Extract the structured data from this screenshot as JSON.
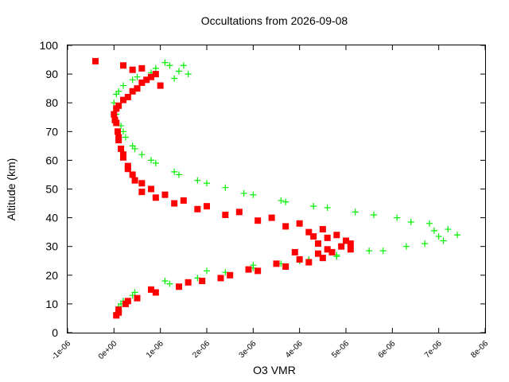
{
  "chart_data": {
    "type": "scatter",
    "title": "Occultations from 2026-09-08",
    "xlabel": "O3 VMR",
    "ylabel": "Altitude (km)",
    "xlim": [
      -1e-06,
      8e-06
    ],
    "ylim": [
      0,
      100
    ],
    "x_ticks": [
      "-1e-06",
      "0e+00",
      "1e-06",
      "2e-06",
      "3e-06",
      "4e-06",
      "5e-06",
      "6e-06",
      "7e-06",
      "8e-06"
    ],
    "x_tick_values": [
      -1e-06,
      0,
      1e-06,
      2e-06,
      3e-06,
      4e-06,
      5e-06,
      6e-06,
      7e-06,
      8e-06
    ],
    "y_ticks": [
      "0",
      "10",
      "20",
      "30",
      "40",
      "50",
      "60",
      "70",
      "80",
      "90",
      "100"
    ],
    "y_tick_values": [
      0,
      10,
      20,
      30,
      40,
      50,
      60,
      70,
      80,
      90,
      100
    ],
    "grid": false,
    "series": [
      {
        "color": "#00ee00",
        "marker": "plus",
        "points": [
          [
            5e-08,
            7
          ],
          [
            1e-07,
            9
          ],
          [
            2e-07,
            11
          ],
          [
            4e-07,
            13
          ],
          [
            8e-07,
            15
          ],
          [
            1.2e-06,
            17
          ],
          [
            1.8e-06,
            19
          ],
          [
            2.4e-06,
            21
          ],
          [
            3e-06,
            22.5
          ],
          [
            3.6e-06,
            24
          ],
          [
            4.2e-06,
            25.5
          ],
          [
            4.8e-06,
            27
          ],
          [
            5.5e-06,
            28.5
          ],
          [
            6.3e-06,
            30
          ],
          [
            7.1e-06,
            32
          ],
          [
            7.4e-06,
            34
          ],
          [
            7.2e-06,
            36
          ],
          [
            6.8e-06,
            38
          ],
          [
            6.1e-06,
            40
          ],
          [
            5.2e-06,
            42
          ],
          [
            4.3e-06,
            44
          ],
          [
            3.6e-06,
            46
          ],
          [
            3e-06,
            48
          ],
          [
            2.4e-06,
            50.5
          ],
          [
            1.8e-06,
            53
          ],
          [
            1.3e-06,
            56
          ],
          [
            9e-07,
            59
          ],
          [
            6e-07,
            62
          ],
          [
            4e-07,
            65
          ],
          [
            2.5e-07,
            68
          ],
          [
            1.5e-07,
            72
          ],
          [
            5e-08,
            76
          ],
          [
            0.0,
            80
          ],
          [
            5e-08,
            83
          ],
          [
            2e-07,
            86
          ],
          [
            5e-07,
            89
          ],
          [
            9e-07,
            92
          ],
          [
            1.2e-06,
            93
          ],
          [
            1.4e-06,
            91
          ],
          [
            1.3e-06,
            88.5
          ],
          [
            5e-08,
            6.5
          ],
          [
            1.5e-07,
            10
          ],
          [
            4.5e-07,
            14
          ],
          [
            1.1e-06,
            18
          ],
          [
            2e-06,
            21.5
          ],
          [
            3e-06,
            23.5
          ],
          [
            4e-06,
            25
          ],
          [
            4.8e-06,
            26.5
          ],
          [
            5.8e-06,
            28.5
          ],
          [
            6.7e-06,
            31
          ],
          [
            7e-06,
            33.5
          ],
          [
            6.9e-06,
            35.5
          ],
          [
            6.4e-06,
            38.5
          ],
          [
            5.6e-06,
            41
          ],
          [
            4.6e-06,
            43.5
          ],
          [
            3.7e-06,
            45.5
          ],
          [
            2.8e-06,
            48.5
          ],
          [
            2e-06,
            52
          ],
          [
            1.4e-06,
            55
          ],
          [
            8e-07,
            60
          ],
          [
            4.5e-07,
            64
          ],
          [
            2e-07,
            70
          ],
          [
            5e-08,
            78
          ],
          [
            1e-07,
            84
          ],
          [
            4e-07,
            88
          ],
          [
            8e-07,
            90.5
          ],
          [
            1.1e-06,
            94
          ],
          [
            1.6e-06,
            90
          ],
          [
            1.5e-06,
            93
          ]
        ]
      },
      {
        "color": "#ff0000",
        "marker": "square",
        "points": [
          [
            5e-08,
            6
          ],
          [
            1e-07,
            8
          ],
          [
            2.5e-07,
            10
          ],
          [
            5e-07,
            12
          ],
          [
            9e-07,
            14
          ],
          [
            1.4e-06,
            16
          ],
          [
            1.9e-06,
            18
          ],
          [
            2.5e-06,
            20
          ],
          [
            3.1e-06,
            21.5
          ],
          [
            3.7e-06,
            23
          ],
          [
            4.2e-06,
            24.5
          ],
          [
            4.5e-06,
            26
          ],
          [
            4.7e-06,
            28
          ],
          [
            4.9e-06,
            30
          ],
          [
            5e-06,
            32
          ],
          [
            4.8e-06,
            34
          ],
          [
            4.5e-06,
            36
          ],
          [
            4e-06,
            38
          ],
          [
            3.4e-06,
            40
          ],
          [
            2.7e-06,
            42
          ],
          [
            2e-06,
            44
          ],
          [
            1.5e-06,
            46
          ],
          [
            1.1e-06,
            48
          ],
          [
            8e-07,
            50
          ],
          [
            6e-07,
            52
          ],
          [
            4e-07,
            55
          ],
          [
            3e-07,
            58
          ],
          [
            2e-07,
            61
          ],
          [
            1.5e-07,
            64
          ],
          [
            1e-07,
            67
          ],
          [
            8e-08,
            70
          ],
          [
            5e-08,
            73
          ],
          [
            0.0,
            76
          ],
          [
            1e-07,
            79
          ],
          [
            3e-07,
            82
          ],
          [
            5e-07,
            85
          ],
          [
            7e-07,
            88
          ],
          [
            9e-07,
            90
          ],
          [
            6e-07,
            92
          ],
          [
            2e-07,
            93
          ],
          [
            -4e-07,
            94.5
          ],
          [
            1e-07,
            7
          ],
          [
            3e-07,
            11
          ],
          [
            8e-07,
            15
          ],
          [
            1.6e-06,
            17.5
          ],
          [
            2.3e-06,
            19
          ],
          [
            2.9e-06,
            22
          ],
          [
            3.5e-06,
            24
          ],
          [
            4e-06,
            25.5
          ],
          [
            4.4e-06,
            27.5
          ],
          [
            4.6e-06,
            29
          ],
          [
            4.4e-06,
            31
          ],
          [
            4.6e-06,
            33
          ],
          [
            4.2e-06,
            35
          ],
          [
            3.7e-06,
            37
          ],
          [
            3.1e-06,
            39
          ],
          [
            2.4e-06,
            41
          ],
          [
            1.8e-06,
            43
          ],
          [
            1.3e-06,
            45
          ],
          [
            9e-07,
            47
          ],
          [
            6e-07,
            49
          ],
          [
            4.5e-07,
            53
          ],
          [
            3e-07,
            57
          ],
          [
            2e-07,
            62
          ],
          [
            1e-07,
            68
          ],
          [
            2e-08,
            74
          ],
          [
            5e-08,
            78
          ],
          [
            2e-07,
            81
          ],
          [
            4e-07,
            84
          ],
          [
            6e-07,
            87
          ],
          [
            8e-07,
            89
          ],
          [
            1e-06,
            86
          ],
          [
            4e-07,
            91.5
          ],
          [
            5.1e-06,
            31
          ],
          [
            5.1e-06,
            29
          ],
          [
            4.3e-06,
            33.5
          ],
          [
            3.9e-06,
            28
          ]
        ]
      }
    ]
  }
}
